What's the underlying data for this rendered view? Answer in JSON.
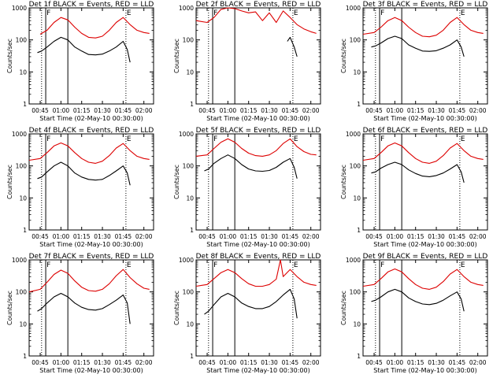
{
  "figure": {
    "background": "#ffffff",
    "ylabel": "Counts/sec",
    "xlabel": "Start Time (02-May-10 00:30:00)",
    "x_ticks": [
      "00:45",
      "01:00",
      "01:15",
      "01:30",
      "01:45",
      "02:00"
    ],
    "y_ticks": [
      "1",
      "10",
      "100",
      "1000"
    ],
    "event_colors": {
      "events": "#000000",
      "lld": "#dd0000"
    }
  },
  "chart_data": [
    {
      "type": "line",
      "title": "Det 1f BLACK = Events, RED = LLD",
      "y_scale": "log",
      "ylim": [
        1,
        1000
      ],
      "xlim": [
        "00:37",
        "02:07"
      ],
      "vlines": [
        {
          "time": "00:46",
          "style": "dotted"
        },
        {
          "time": "00:49",
          "style": "solid",
          "label": "F"
        },
        {
          "time": "01:05",
          "style": "solid"
        },
        {
          "time": "01:47",
          "style": "dotted",
          "label": "E"
        }
      ],
      "series": [
        {
          "name": "LLD",
          "color": "#dd0000",
          "x": [
            "00:45",
            "00:50",
            "00:55",
            "01:00",
            "01:05",
            "01:10",
            "01:15",
            "01:20",
            "01:25",
            "01:30",
            "01:35",
            "01:40",
            "01:45",
            "01:50",
            "01:55",
            "02:00",
            "02:04"
          ],
          "y": [
            150,
            200,
            350,
            500,
            420,
            250,
            160,
            120,
            115,
            130,
            200,
            350,
            500,
            300,
            200,
            170,
            160
          ]
        },
        {
          "name": "Events",
          "color": "#000000",
          "x": [
            "00:43",
            "00:46",
            "00:50",
            "00:55",
            "01:00",
            "01:05",
            "01:10",
            "01:15",
            "01:20",
            "01:25",
            "01:30",
            "01:35",
            "01:40",
            "01:45",
            "01:48",
            "01:50"
          ],
          "y": [
            40,
            45,
            60,
            90,
            120,
            100,
            60,
            45,
            35,
            34,
            36,
            45,
            60,
            90,
            50,
            20
          ]
        }
      ]
    },
    {
      "type": "line",
      "title": "Det 2f BLACK = Events, RED = LLD",
      "y_scale": "log",
      "ylim": [
        1,
        1000
      ],
      "xlim": [
        "00:37",
        "02:07"
      ],
      "vlines": [
        {
          "time": "00:46",
          "style": "dotted"
        },
        {
          "time": "00:49",
          "style": "solid",
          "label": "F"
        },
        {
          "time": "01:05",
          "style": "solid"
        },
        {
          "time": "01:47",
          "style": "dotted",
          "label": "E"
        }
      ],
      "series": [
        {
          "name": "LLD",
          "color": "#dd0000",
          "x": [
            "00:37",
            "00:45",
            "00:50",
            "00:55",
            "01:00",
            "01:05",
            "01:10",
            "01:15",
            "01:20",
            "01:25",
            "01:30",
            "01:35",
            "01:40",
            "01:45",
            "01:50",
            "01:55",
            "02:00",
            "02:04"
          ],
          "y": [
            400,
            350,
            500,
            900,
            1000,
            950,
            800,
            700,
            750,
            400,
            700,
            350,
            800,
            500,
            300,
            220,
            180,
            160
          ]
        },
        {
          "name": "Events",
          "color": "#000000",
          "x": [
            "01:43",
            "01:45",
            "01:48",
            "01:50"
          ],
          "y": [
            90,
            120,
            60,
            30
          ]
        }
      ]
    },
    {
      "type": "line",
      "title": "Det 3f BLACK = Events, RED = LLD",
      "y_scale": "log",
      "ylim": [
        1,
        1000
      ],
      "xlim": [
        "00:37",
        "02:07"
      ],
      "vlines": [
        {
          "time": "00:46",
          "style": "dotted"
        },
        {
          "time": "00:49",
          "style": "solid",
          "label": "F"
        },
        {
          "time": "01:05",
          "style": "solid"
        },
        {
          "time": "01:47",
          "style": "dotted",
          "label": "E"
        }
      ],
      "series": [
        {
          "name": "LLD",
          "color": "#dd0000",
          "x": [
            "00:37",
            "00:45",
            "00:50",
            "00:55",
            "01:00",
            "01:05",
            "01:10",
            "01:15",
            "01:20",
            "01:25",
            "01:30",
            "01:35",
            "01:40",
            "01:45",
            "01:50",
            "01:55",
            "02:00",
            "02:04"
          ],
          "y": [
            150,
            170,
            250,
            400,
            500,
            400,
            250,
            170,
            130,
            125,
            140,
            200,
            350,
            500,
            300,
            200,
            170,
            160
          ]
        },
        {
          "name": "Events",
          "color": "#000000",
          "x": [
            "00:43",
            "00:46",
            "00:50",
            "00:55",
            "01:00",
            "01:05",
            "01:10",
            "01:15",
            "01:20",
            "01:25",
            "01:30",
            "01:35",
            "01:40",
            "01:45",
            "01:48",
            "01:50"
          ],
          "y": [
            60,
            65,
            80,
            110,
            130,
            110,
            70,
            55,
            45,
            44,
            46,
            55,
            70,
            100,
            60,
            30
          ]
        }
      ]
    },
    {
      "type": "line",
      "title": "Det 4f BLACK = Events, RED = LLD",
      "y_scale": "log",
      "ylim": [
        1,
        1000
      ],
      "xlim": [
        "00:37",
        "02:07"
      ],
      "vlines": [
        {
          "time": "00:46",
          "style": "dotted"
        },
        {
          "time": "00:49",
          "style": "solid",
          "label": "F"
        },
        {
          "time": "01:05",
          "style": "solid"
        },
        {
          "time": "01:47",
          "style": "dotted",
          "label": "E"
        }
      ],
      "series": [
        {
          "name": "LLD",
          "color": "#dd0000",
          "x": [
            "00:37",
            "00:45",
            "00:50",
            "00:55",
            "01:00",
            "01:05",
            "01:10",
            "01:15",
            "01:20",
            "01:25",
            "01:30",
            "01:35",
            "01:40",
            "01:45",
            "01:50",
            "01:55",
            "02:00",
            "02:04"
          ],
          "y": [
            150,
            170,
            260,
            420,
            520,
            420,
            260,
            170,
            130,
            120,
            140,
            210,
            360,
            500,
            300,
            200,
            170,
            160
          ]
        },
        {
          "name": "Events",
          "color": "#000000",
          "x": [
            "00:43",
            "00:46",
            "00:50",
            "00:55",
            "01:00",
            "01:05",
            "01:10",
            "01:15",
            "01:20",
            "01:25",
            "01:30",
            "01:35",
            "01:40",
            "01:45",
            "01:48",
            "01:50"
          ],
          "y": [
            40,
            45,
            65,
            100,
            130,
            100,
            60,
            45,
            38,
            36,
            38,
            50,
            70,
            100,
            60,
            25
          ]
        }
      ]
    },
    {
      "type": "line",
      "title": "Det 5f BLACK = Events, RED = LLD",
      "y_scale": "log",
      "ylim": [
        1,
        1000
      ],
      "xlim": [
        "00:37",
        "02:07"
      ],
      "vlines": [
        {
          "time": "00:46",
          "style": "dotted"
        },
        {
          "time": "00:49",
          "style": "solid",
          "label": "F"
        },
        {
          "time": "01:05",
          "style": "solid"
        },
        {
          "time": "01:47",
          "style": "dotted",
          "label": "E"
        }
      ],
      "series": [
        {
          "name": "LLD",
          "color": "#dd0000",
          "x": [
            "00:37",
            "00:45",
            "00:50",
            "00:55",
            "01:00",
            "01:05",
            "01:10",
            "01:15",
            "01:20",
            "01:25",
            "01:30",
            "01:35",
            "01:40",
            "01:45",
            "01:50",
            "01:55",
            "02:00",
            "02:04"
          ],
          "y": [
            200,
            220,
            350,
            550,
            700,
            550,
            350,
            250,
            210,
            200,
            220,
            300,
            500,
            700,
            400,
            280,
            230,
            220
          ]
        },
        {
          "name": "Events",
          "color": "#000000",
          "x": [
            "00:43",
            "00:46",
            "00:50",
            "00:55",
            "01:00",
            "01:05",
            "01:10",
            "01:15",
            "01:20",
            "01:25",
            "01:30",
            "01:35",
            "01:40",
            "01:45",
            "01:48",
            "01:50"
          ],
          "y": [
            70,
            80,
            120,
            170,
            220,
            170,
            110,
            80,
            70,
            68,
            72,
            90,
            130,
            170,
            90,
            40
          ]
        }
      ]
    },
    {
      "type": "line",
      "title": "Det 6f BLACK = Events, RED = LLD",
      "y_scale": "log",
      "ylim": [
        1,
        1000
      ],
      "xlim": [
        "00:37",
        "02:07"
      ],
      "vlines": [
        {
          "time": "00:46",
          "style": "dotted"
        },
        {
          "time": "00:49",
          "style": "solid",
          "label": "F"
        },
        {
          "time": "01:05",
          "style": "solid"
        },
        {
          "time": "01:47",
          "style": "dotted",
          "label": "E"
        }
      ],
      "series": [
        {
          "name": "LLD",
          "color": "#dd0000",
          "x": [
            "00:37",
            "00:45",
            "00:50",
            "00:55",
            "01:00",
            "01:05",
            "01:10",
            "01:15",
            "01:20",
            "01:25",
            "01:30",
            "01:35",
            "01:40",
            "01:45",
            "01:50",
            "01:55",
            "02:00",
            "02:04"
          ],
          "y": [
            150,
            170,
            260,
            420,
            520,
            420,
            260,
            170,
            130,
            120,
            140,
            210,
            360,
            500,
            300,
            200,
            170,
            160
          ]
        },
        {
          "name": "Events",
          "color": "#000000",
          "x": [
            "00:43",
            "00:46",
            "00:50",
            "00:55",
            "01:00",
            "01:05",
            "01:10",
            "01:15",
            "01:20",
            "01:25",
            "01:30",
            "01:35",
            "01:40",
            "01:45",
            "01:48",
            "01:50"
          ],
          "y": [
            60,
            65,
            85,
            110,
            130,
            110,
            75,
            58,
            48,
            46,
            50,
            60,
            80,
            110,
            65,
            30
          ]
        }
      ]
    },
    {
      "type": "line",
      "title": "Det 7f BLACK = Events, RED = LLD",
      "y_scale": "log",
      "ylim": [
        1,
        1000
      ],
      "xlim": [
        "00:37",
        "02:07"
      ],
      "vlines": [
        {
          "time": "00:46",
          "style": "dotted"
        },
        {
          "time": "00:49",
          "style": "solid",
          "label": "F"
        },
        {
          "time": "01:05",
          "style": "solid"
        },
        {
          "time": "01:47",
          "style": "dotted",
          "label": "E"
        }
      ],
      "series": [
        {
          "name": "LLD",
          "color": "#dd0000",
          "x": [
            "00:37",
            "00:45",
            "00:50",
            "00:55",
            "01:00",
            "01:05",
            "01:10",
            "01:15",
            "01:20",
            "01:25",
            "01:30",
            "01:35",
            "01:40",
            "01:45",
            "01:50",
            "01:55",
            "02:00",
            "02:04"
          ],
          "y": [
            100,
            120,
            200,
            350,
            480,
            380,
            220,
            140,
            110,
            105,
            120,
            180,
            320,
            500,
            280,
            180,
            130,
            120
          ]
        },
        {
          "name": "Events",
          "color": "#000000",
          "x": [
            "00:43",
            "00:46",
            "00:50",
            "00:55",
            "01:00",
            "01:05",
            "01:10",
            "01:15",
            "01:20",
            "01:25",
            "01:30",
            "01:35",
            "01:40",
            "01:45",
            "01:48",
            "01:50"
          ],
          "y": [
            25,
            30,
            45,
            70,
            90,
            70,
            45,
            33,
            28,
            27,
            30,
            40,
            55,
            80,
            45,
            10
          ]
        }
      ]
    },
    {
      "type": "line",
      "title": "Det 8f BLACK = Events, RED = LLD",
      "y_scale": "log",
      "ylim": [
        1,
        1000
      ],
      "xlim": [
        "00:37",
        "02:07"
      ],
      "vlines": [
        {
          "time": "00:46",
          "style": "dotted"
        },
        {
          "time": "00:49",
          "style": "solid",
          "label": "F"
        },
        {
          "time": "01:05",
          "style": "solid"
        },
        {
          "time": "01:47",
          "style": "dotted",
          "label": "E"
        }
      ],
      "series": [
        {
          "name": "LLD",
          "color": "#dd0000",
          "x": [
            "00:37",
            "00:45",
            "00:50",
            "00:55",
            "01:00",
            "01:05",
            "01:10",
            "01:15",
            "01:20",
            "01:25",
            "01:30",
            "01:35",
            "01:38",
            "01:40",
            "01:45",
            "01:50",
            "01:55",
            "02:00",
            "02:04"
          ],
          "y": [
            150,
            170,
            260,
            400,
            500,
            400,
            260,
            180,
            150,
            150,
            170,
            250,
            1000,
            300,
            500,
            300,
            200,
            170,
            160
          ]
        },
        {
          "name": "Events",
          "color": "#000000",
          "x": [
            "00:43",
            "00:46",
            "00:50",
            "00:55",
            "01:00",
            "01:05",
            "01:10",
            "01:15",
            "01:20",
            "01:25",
            "01:30",
            "01:35",
            "01:40",
            "01:45",
            "01:48",
            "01:50"
          ],
          "y": [
            20,
            25,
            40,
            70,
            90,
            70,
            45,
            35,
            30,
            30,
            35,
            50,
            80,
            120,
            60,
            15
          ]
        }
      ]
    },
    {
      "type": "line",
      "title": "Det 9f BLACK = Events, RED = LLD",
      "y_scale": "log",
      "ylim": [
        1,
        1000
      ],
      "xlim": [
        "00:37",
        "02:07"
      ],
      "vlines": [
        {
          "time": "00:46",
          "style": "dotted"
        },
        {
          "time": "00:49",
          "style": "solid",
          "label": "F"
        },
        {
          "time": "01:05",
          "style": "solid"
        },
        {
          "time": "01:47",
          "style": "dotted",
          "label": "E"
        }
      ],
      "series": [
        {
          "name": "LLD",
          "color": "#dd0000",
          "x": [
            "00:37",
            "00:45",
            "00:50",
            "00:55",
            "01:00",
            "01:05",
            "01:10",
            "01:15",
            "01:20",
            "01:25",
            "01:30",
            "01:35",
            "01:40",
            "01:45",
            "01:50",
            "01:55",
            "02:00",
            "02:04"
          ],
          "y": [
            150,
            170,
            260,
            420,
            520,
            420,
            260,
            170,
            130,
            120,
            140,
            210,
            360,
            500,
            300,
            200,
            170,
            160
          ]
        },
        {
          "name": "Events",
          "color": "#000000",
          "x": [
            "00:43",
            "00:46",
            "00:50",
            "00:55",
            "01:00",
            "01:05",
            "01:10",
            "01:15",
            "01:20",
            "01:25",
            "01:30",
            "01:35",
            "01:40",
            "01:45",
            "01:48",
            "01:50"
          ],
          "y": [
            50,
            55,
            70,
            100,
            120,
            100,
            65,
            50,
            42,
            40,
            44,
            55,
            75,
            100,
            60,
            25
          ]
        }
      ]
    }
  ]
}
